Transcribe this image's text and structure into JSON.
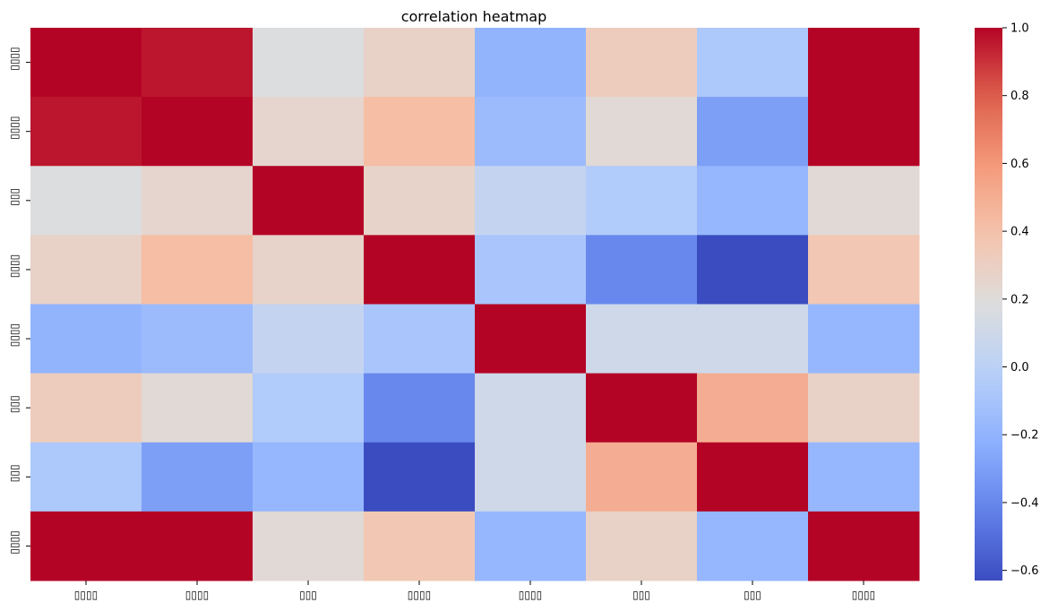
{
  "chart_data": {
    "type": "heatmap",
    "title": "correlation heatmap",
    "colormap": "coolwarm",
    "row_labels": [
      "▯▯▯▯",
      "▯▯▯▯",
      "▯▯▯",
      "▯▯▯▯",
      "▯▯▯▯",
      "▯▯▯",
      "▯▯▯",
      "▯▯▯▯"
    ],
    "col_labels": [
      "▯▯▯▯",
      "▯▯▯▯",
      "▯▯▯",
      "▯▯▯▯",
      "▯▯▯▯",
      "▯▯▯",
      "▯▯▯",
      "▯▯▯▯"
    ],
    "values": [
      [
        1.0,
        0.96,
        0.18,
        0.28,
        -0.2,
        0.32,
        -0.07,
        1.0
      ],
      [
        0.96,
        1.0,
        0.25,
        0.42,
        -0.15,
        0.22,
        -0.3,
        1.0
      ],
      [
        0.18,
        0.25,
        1.0,
        0.27,
        0.05,
        -0.05,
        -0.18,
        0.22
      ],
      [
        0.28,
        0.42,
        0.27,
        1.0,
        -0.09,
        -0.4,
        -0.63,
        0.36
      ],
      [
        -0.2,
        -0.15,
        0.05,
        -0.09,
        1.0,
        0.1,
        0.1,
        -0.18
      ],
      [
        0.32,
        0.22,
        -0.05,
        -0.4,
        0.1,
        1.0,
        0.5,
        0.28
      ],
      [
        -0.07,
        -0.3,
        -0.18,
        -0.63,
        0.1,
        0.5,
        1.0,
        -0.18
      ],
      [
        1.0,
        1.0,
        0.22,
        0.36,
        -0.18,
        0.28,
        -0.18,
        1.0
      ]
    ],
    "vmin": -0.63,
    "vmax": 1.0,
    "colorbar_ticks": [
      "1.0",
      "0.8",
      "0.6",
      "0.4",
      "0.2",
      "0.0",
      "−0.2",
      "−0.4",
      "−0.6"
    ],
    "colorbar_tick_values": [
      1.0,
      0.8,
      0.6,
      0.4,
      0.2,
      0.0,
      -0.2,
      -0.4,
      -0.6
    ],
    "grid": false,
    "legend": "colorbar-right"
  }
}
